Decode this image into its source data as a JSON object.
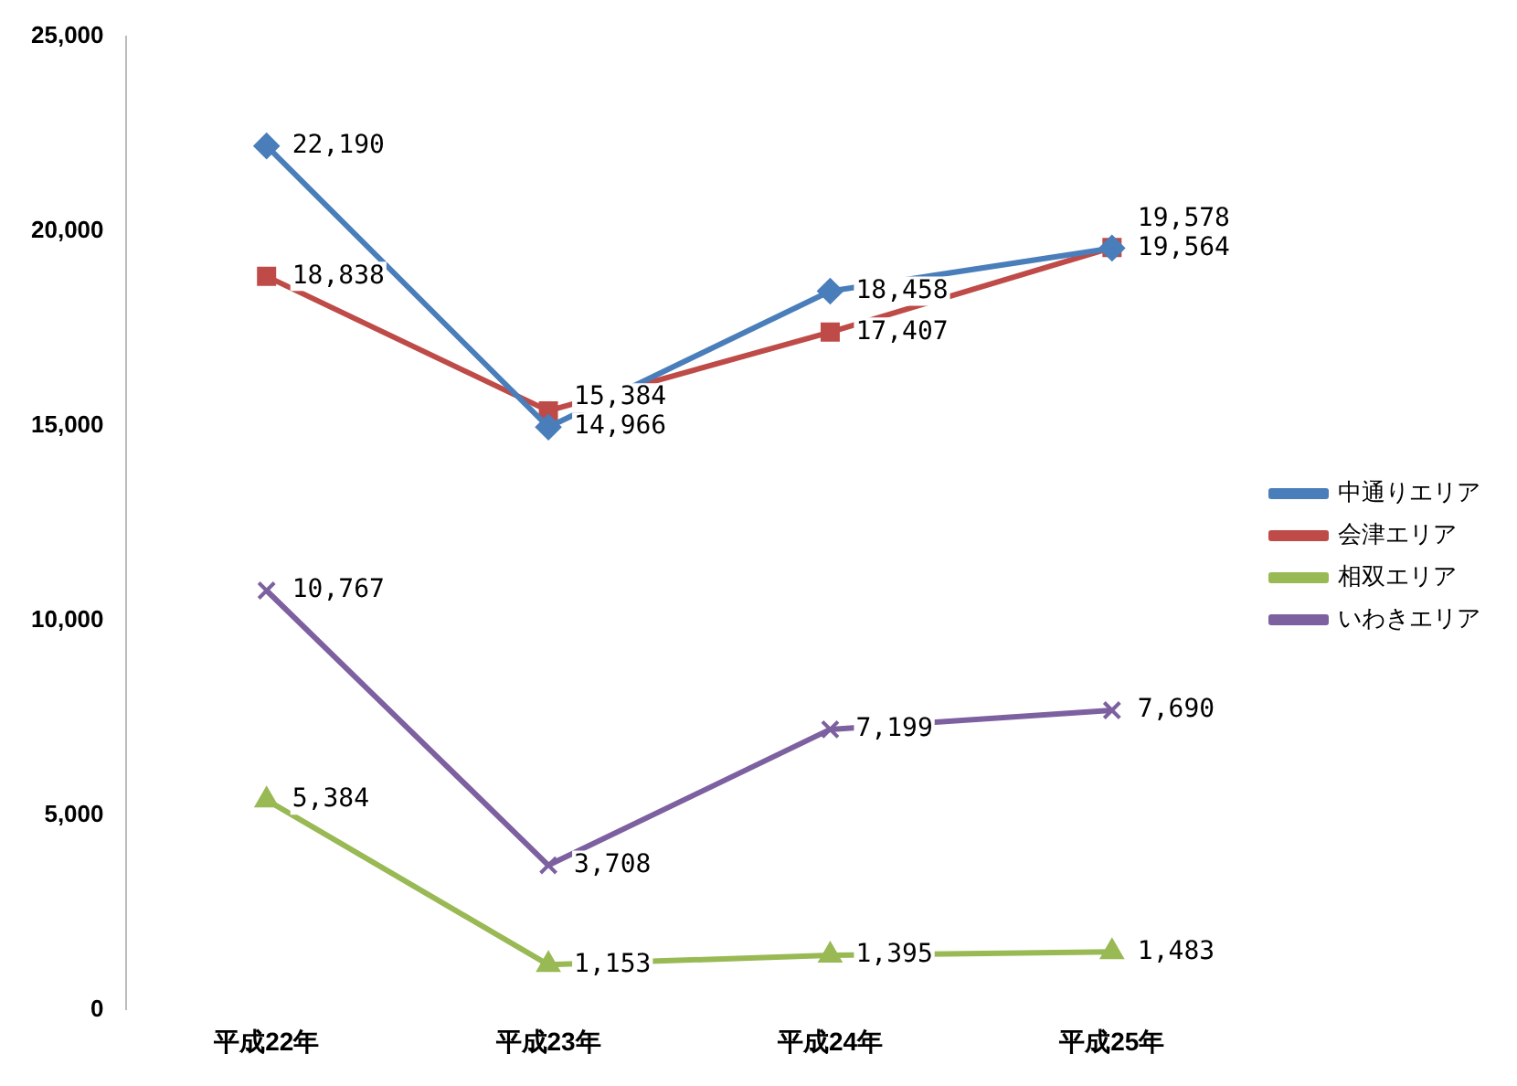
{
  "chart_data": {
    "type": "line",
    "categories": [
      "平成22年",
      "平成23年",
      "平成24年",
      "平成25年"
    ],
    "series": [
      {
        "name": "中通りエリア",
        "color": "#4a7ebb",
        "marker": "diamond",
        "values": [
          22190,
          14966,
          18458,
          19564
        ],
        "value_labels": [
          "22,190",
          "14,966",
          "18,458",
          "19,564"
        ]
      },
      {
        "name": "会津エリア",
        "color": "#be4b48",
        "marker": "square",
        "values": [
          18838,
          15384,
          17407,
          19578
        ],
        "value_labels": [
          "18,838",
          "15,384",
          "17,407",
          "19,578"
        ]
      },
      {
        "name": "相双エリア",
        "color": "#98b954",
        "marker": "triangle",
        "values": [
          5384,
          1153,
          1395,
          1483
        ],
        "value_labels": [
          "5,384",
          "1,153",
          "1,395",
          "1,483"
        ]
      },
      {
        "name": "いわきエリア",
        "color": "#7d60a0",
        "marker": "cross",
        "values": [
          10767,
          3708,
          7199,
          7690
        ],
        "value_labels": [
          "10,767",
          "3,708",
          "7,199",
          "7,690"
        ]
      }
    ],
    "ylim": [
      0,
      25000
    ],
    "yticks": [
      0,
      {
        "value": 5000,
        "label": "5,000"
      },
      {
        "value": 10000,
        "label": "10,000"
      },
      {
        "value": 15000,
        "label": "15,000"
      },
      {
        "value": 20000,
        "label": "20,000"
      },
      {
        "value": 25000,
        "label": "25,000"
      }
    ],
    "grid": false,
    "legend": "right",
    "line_style": "solid"
  }
}
